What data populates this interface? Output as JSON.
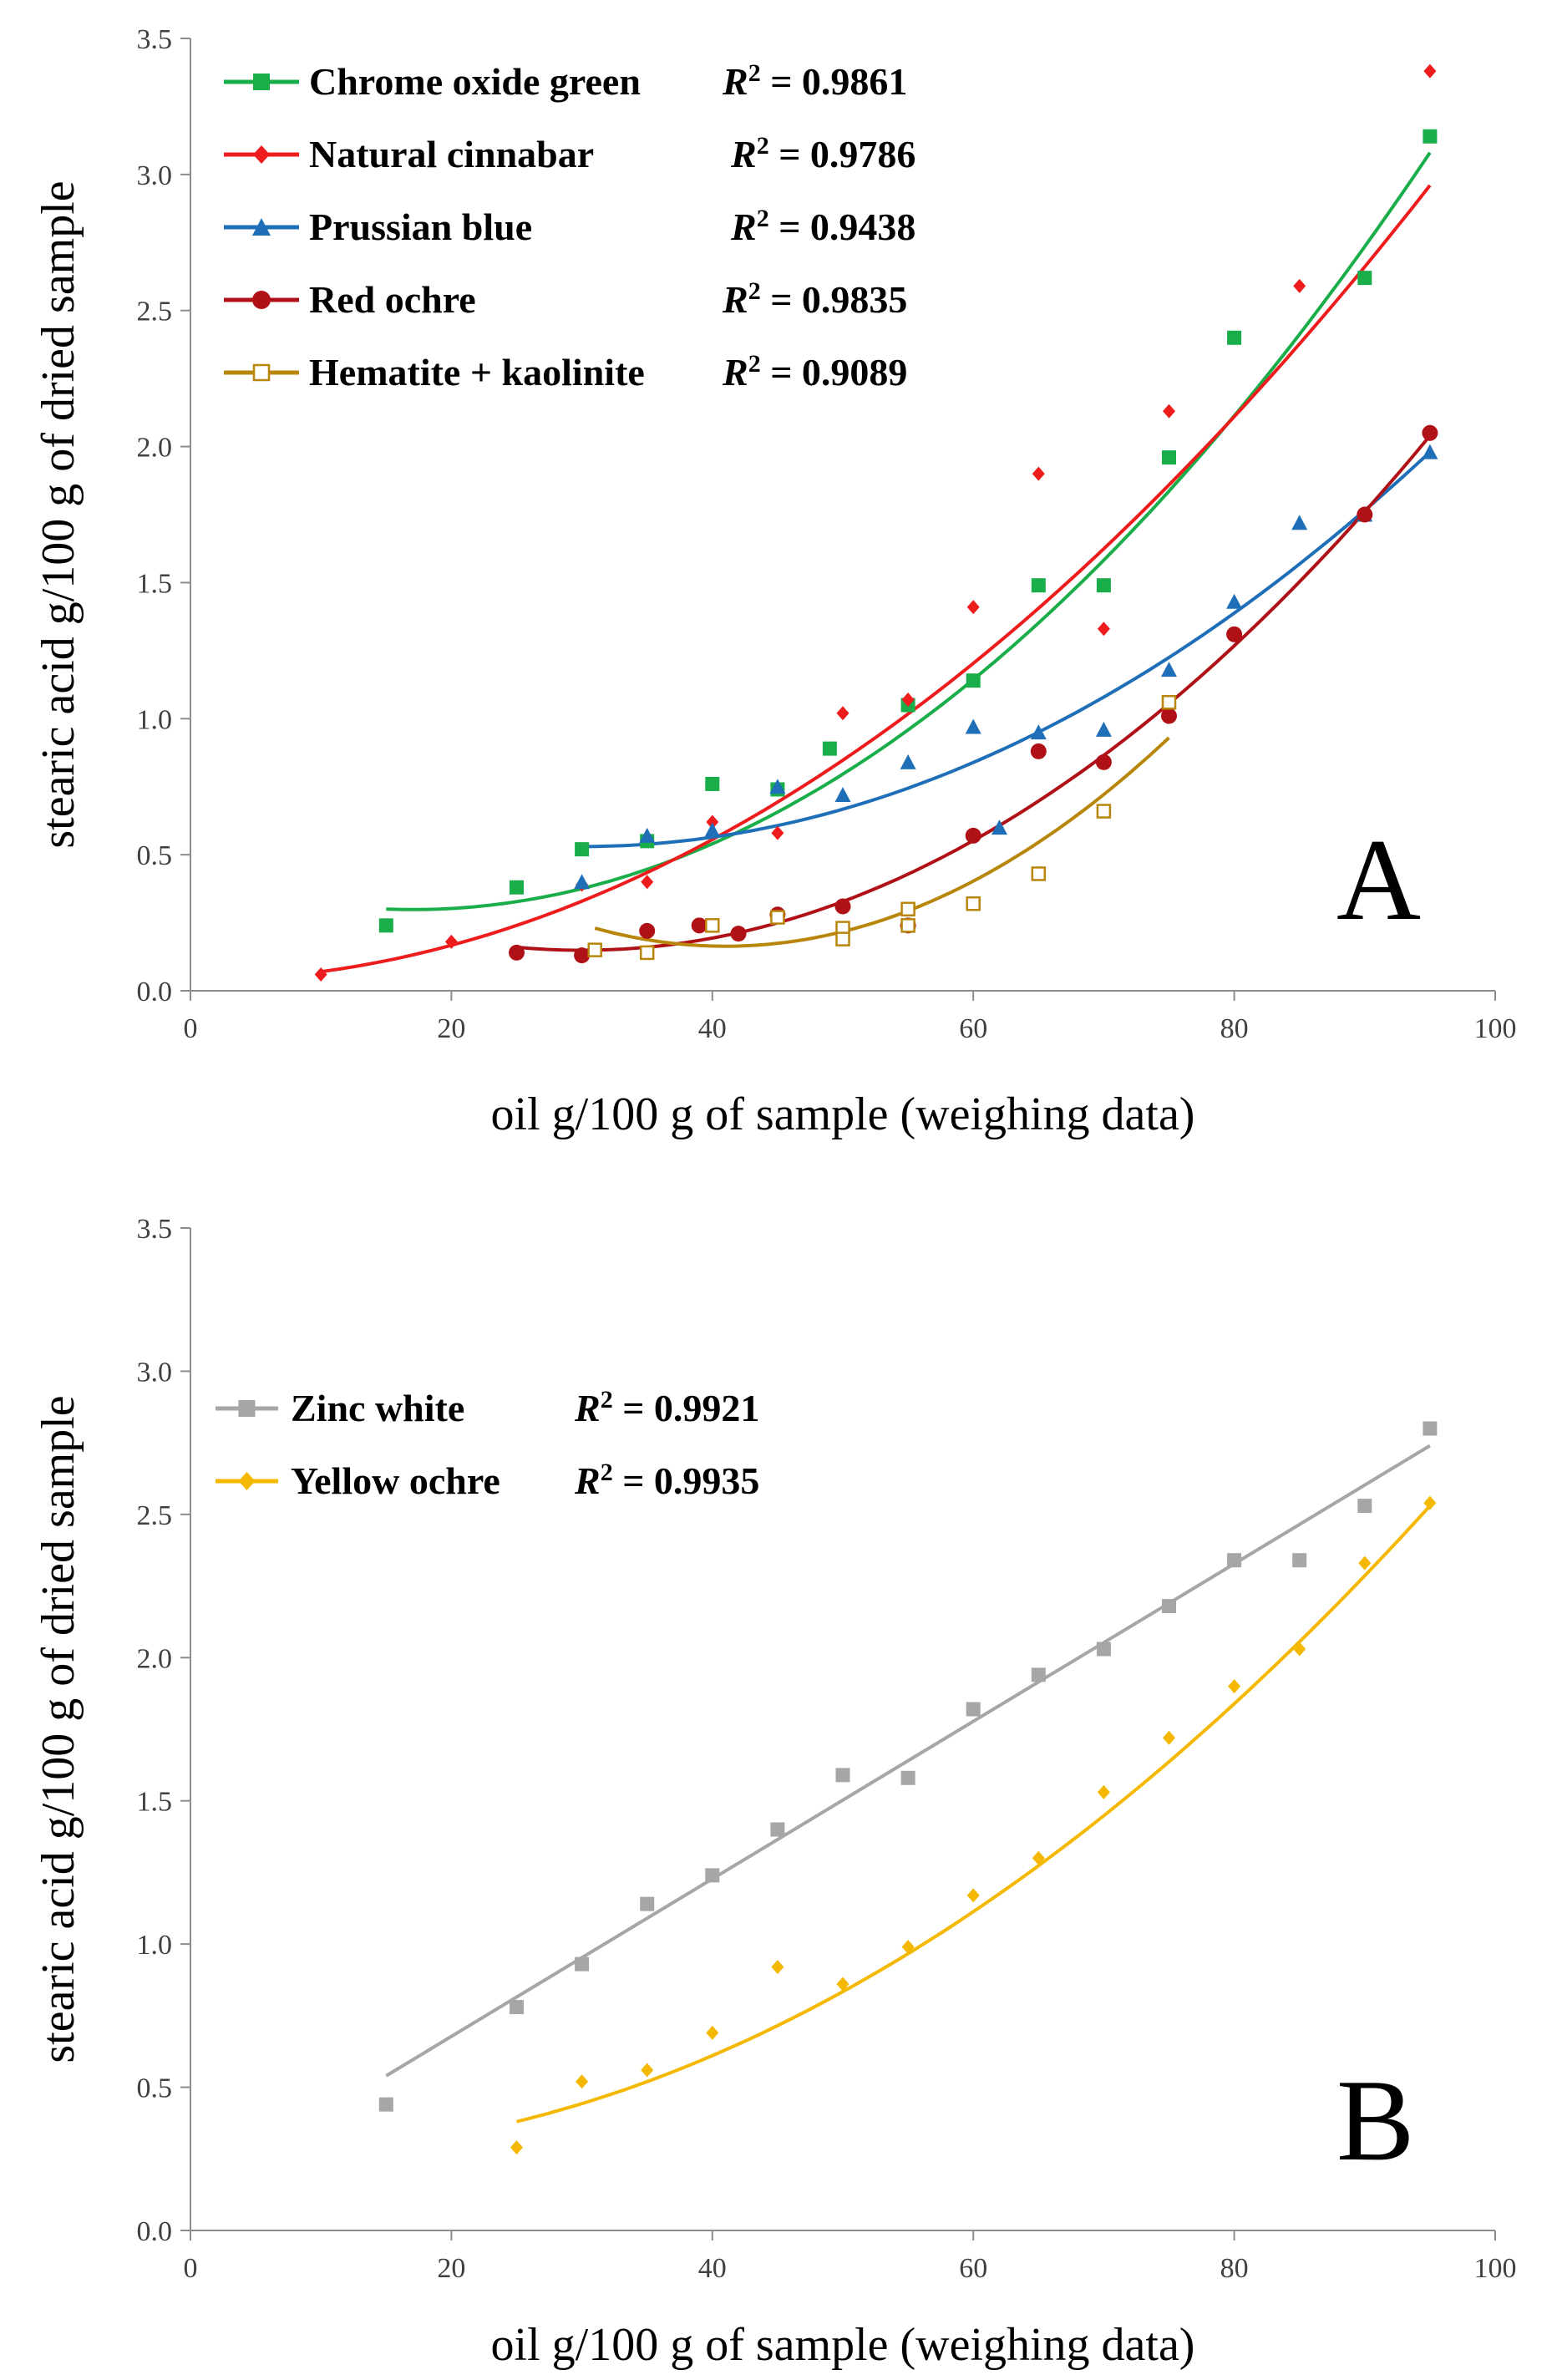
{
  "chart_data": [
    {
      "type": "scatter",
      "panel_label": "A",
      "xlabel": "oil g/100 g of sample (weighing data)",
      "ylabel": "stearic acid g/100 g of dried sample",
      "xlim": [
        0,
        100
      ],
      "ylim": [
        0,
        3.5
      ],
      "xticks": [
        "0",
        "20",
        "40",
        "60",
        "80",
        "100"
      ],
      "yticks": [
        "0.0",
        "0.5",
        "1.0",
        "1.5",
        "2.0",
        "2.5",
        "3.0",
        "3.5"
      ],
      "legend_position": "top-left",
      "series": [
        {
          "name": "Chrome oxide green",
          "r2_label": "R",
          "r2_sup": "2",
          "r2_value": " = 0.9861",
          "color": "#1aae4a",
          "marker": "square",
          "points": [
            [
              15,
              0.24
            ],
            [
              25,
              0.38
            ],
            [
              30,
              0.52
            ],
            [
              35,
              0.55
            ],
            [
              40,
              0.76
            ],
            [
              45,
              0.74
            ],
            [
              49,
              0.89
            ],
            [
              55,
              1.05
            ],
            [
              60,
              1.14
            ],
            [
              65,
              1.49
            ],
            [
              70,
              1.49
            ],
            [
              75,
              1.96
            ],
            [
              80,
              2.4
            ],
            [
              90,
              2.62
            ],
            [
              95,
              3.14
            ]
          ],
          "trend": {
            "kind": "poly2",
            "x_range": [
              15,
              95
            ],
            "start_end_vertex": [
              [
                15,
                0.3
              ],
              [
                95,
                3.08
              ],
              [
                17,
                0.3
              ]
            ]
          }
        },
        {
          "name": "Natural cinnabar",
          "r2_label": "R",
          "r2_sup": "2",
          "r2_value": " = 0.9786",
          "color": "#ee1c1c",
          "marker": "diamond",
          "points": [
            [
              10,
              0.06
            ],
            [
              20,
              0.18
            ],
            [
              30,
              0.39
            ],
            [
              35,
              0.4
            ],
            [
              40,
              0.62
            ],
            [
              45,
              0.58
            ],
            [
              50,
              1.02
            ],
            [
              55,
              1.07
            ],
            [
              60,
              1.41
            ],
            [
              65,
              1.9
            ],
            [
              70,
              1.33
            ],
            [
              75,
              2.13
            ],
            [
              85,
              2.59
            ],
            [
              95,
              3.38
            ]
          ],
          "trend": {
            "kind": "poly2",
            "x_range": [
              10,
              95
            ],
            "start_end_vertex": [
              [
                10,
                0.07
              ],
              [
                95,
                2.96
              ],
              [
                0,
                -0.04
              ]
            ]
          }
        },
        {
          "name": "Prussian blue",
          "r2_label": "R",
          "r2_sup": "2",
          "r2_value": " = 0.9438",
          "color": "#1f6fb8",
          "marker": "triangle",
          "points": [
            [
              30,
              0.4
            ],
            [
              35,
              0.57
            ],
            [
              40,
              0.59
            ],
            [
              45,
              0.75
            ],
            [
              50,
              0.72
            ],
            [
              55,
              0.84
            ],
            [
              60,
              0.97
            ],
            [
              62,
              0.6
            ],
            [
              65,
              0.95
            ],
            [
              70,
              0.96
            ],
            [
              75,
              1.18
            ],
            [
              80,
              1.43
            ],
            [
              85,
              1.72
            ],
            [
              90,
              1.75
            ],
            [
              95,
              1.98
            ]
          ],
          "trend": {
            "kind": "poly2",
            "x_range": [
              30,
              95
            ],
            "start_end_vertex": [
              [
                30,
                0.53
              ],
              [
                95,
                1.98
              ],
              [
                30,
                0.53
              ]
            ]
          }
        },
        {
          "name": "Red ochre",
          "r2_label": "R",
          "r2_sup": "2",
          "r2_value": " = 0.9835",
          "color": "#b01116",
          "marker": "circle",
          "points": [
            [
              25,
              0.14
            ],
            [
              30,
              0.13
            ],
            [
              35,
              0.22
            ],
            [
              39,
              0.24
            ],
            [
              42,
              0.21
            ],
            [
              45,
              0.28
            ],
            [
              50,
              0.31
            ],
            [
              55,
              0.24
            ],
            [
              60,
              0.57
            ],
            [
              65,
              0.88
            ],
            [
              70,
              0.84
            ],
            [
              75,
              1.01
            ],
            [
              80,
              1.31
            ],
            [
              90,
              1.75
            ],
            [
              95,
              2.05
            ]
          ],
          "trend": {
            "kind": "poly2",
            "x_range": [
              25,
              95
            ],
            "start_end_vertex": [
              [
                25,
                0.16
              ],
              [
                95,
                2.04
              ],
              [
                30,
                0.15
              ]
            ]
          }
        },
        {
          "name": "Hematite + kaolinite",
          "r2_label": "R",
          "r2_sup": "2",
          "r2_value": " = 0.9089",
          "color": "#b8860b",
          "marker": "open-square",
          "points": [
            [
              31,
              0.15
            ],
            [
              35,
              0.14
            ],
            [
              40,
              0.24
            ],
            [
              45,
              0.27
            ],
            [
              50,
              0.23
            ],
            [
              50,
              0.19
            ],
            [
              55,
              0.3
            ],
            [
              55,
              0.24
            ],
            [
              60,
              0.32
            ],
            [
              65,
              0.43
            ],
            [
              70,
              0.66
            ],
            [
              75,
              1.06
            ]
          ],
          "trend": {
            "kind": "poly2",
            "x_range": [
              31,
              75
            ],
            "start_end_vertex": [
              [
                31,
                0.23
              ],
              [
                75,
                0.93
              ],
              [
                41,
                0.16
              ]
            ]
          }
        }
      ]
    },
    {
      "type": "scatter",
      "panel_label": "B",
      "xlabel": "oil g/100 g of sample (weighing data)",
      "ylabel": "stearic acid g/100 g of dried sample",
      "xlim": [
        0,
        100
      ],
      "ylim": [
        0,
        3.5
      ],
      "xticks": [
        "0",
        "20",
        "40",
        "60",
        "80",
        "100"
      ],
      "yticks": [
        "0.0",
        "0.5",
        "1.0",
        "1.5",
        "2.0",
        "2.5",
        "3.0",
        "3.5"
      ],
      "legend_position": "top-left",
      "series": [
        {
          "name": "Zinc white",
          "r2_label": "R",
          "r2_sup": "2",
          "r2_value": " = 0.9921",
          "color": "#a6a6a6",
          "marker": "square",
          "points": [
            [
              15,
              0.44
            ],
            [
              25,
              0.78
            ],
            [
              30,
              0.93
            ],
            [
              35,
              1.14
            ],
            [
              40,
              1.24
            ],
            [
              45,
              1.4
            ],
            [
              50,
              1.59
            ],
            [
              55,
              1.58
            ],
            [
              60,
              1.82
            ],
            [
              65,
              1.94
            ],
            [
              70,
              2.03
            ],
            [
              75,
              2.18
            ],
            [
              80,
              2.34
            ],
            [
              85,
              2.34
            ],
            [
              90,
              2.53
            ],
            [
              95,
              2.8
            ]
          ],
          "trend": {
            "kind": "linear",
            "x_range": [
              15,
              95
            ],
            "endpoints": [
              [
                15,
                0.54
              ],
              [
                95,
                2.74
              ]
            ]
          }
        },
        {
          "name": "Yellow ochre",
          "r2_label": "R",
          "r2_sup": "2",
          "r2_value": " = 0.9935",
          "color": "#f5b800",
          "marker": "diamond",
          "points": [
            [
              25,
              0.29
            ],
            [
              30,
              0.52
            ],
            [
              35,
              0.56
            ],
            [
              40,
              0.69
            ],
            [
              45,
              0.92
            ],
            [
              50,
              0.86
            ],
            [
              55,
              0.99
            ],
            [
              60,
              1.17
            ],
            [
              65,
              1.3
            ],
            [
              70,
              1.53
            ],
            [
              75,
              1.72
            ],
            [
              80,
              1.9
            ],
            [
              85,
              2.03
            ],
            [
              90,
              2.33
            ],
            [
              95,
              2.54
            ]
          ],
          "trend": {
            "kind": "poly2",
            "x_range": [
              25,
              95
            ],
            "start_end_vertex": [
              [
                25,
                0.38
              ],
              [
                95,
                2.53
              ],
              [
                5,
                0.06
              ]
            ]
          }
        }
      ]
    }
  ]
}
